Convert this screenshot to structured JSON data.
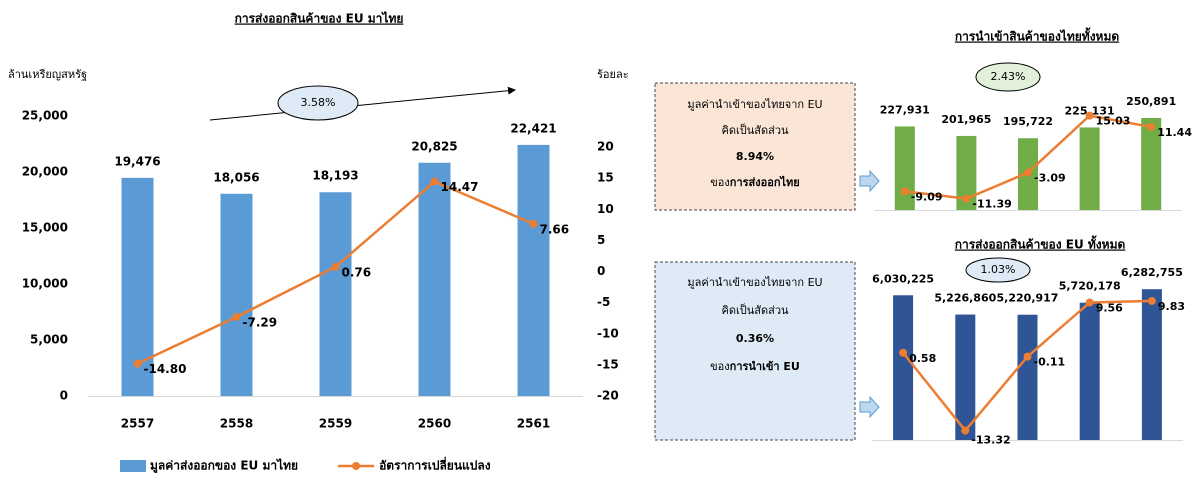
{
  "chart_data": [
    {
      "type": "bar_line",
      "title": "การส่งออกสินค้าของ EU มาไทย",
      "y_label": "ล้านเหรียญสหรัฐ",
      "y2_label": "ร้อยละ",
      "categories": [
        "2557",
        "2558",
        "2559",
        "2560",
        "2561"
      ],
      "series": [
        {
          "name": "มูลค่าส่งออกของ EU มาไทย",
          "kind": "bar",
          "color": "#5b9bd5",
          "values": [
            19476,
            18056,
            18193,
            20825,
            22421
          ],
          "value_labels": [
            "19,476",
            "18,056",
            "18,193",
            "20,825",
            "22,421"
          ]
        },
        {
          "name": "อัตราการเปลี่ยนแปลง",
          "kind": "line",
          "axis": "y2",
          "color": "#ed7d31",
          "values": [
            -14.8,
            -7.29,
            0.76,
            14.47,
            7.66
          ],
          "value_labels": [
            "-14.80",
            "-7.29",
            "0.76",
            "14.47",
            "7.66"
          ]
        }
      ],
      "ylim": [
        0,
        25000
      ],
      "yticks": [
        0,
        {
          "value": 5000,
          "label": "5,000"
        },
        {
          "value": 10000,
          "label": "10,000"
        },
        {
          "value": 15000,
          "label": "15,000"
        },
        {
          "value": 20000,
          "label": "20,000"
        },
        {
          "value": 25000,
          "label": "25,000"
        }
      ],
      "y2lim": [
        -20,
        25
      ],
      "y2ticks": [
        -20,
        -15,
        -10,
        -5,
        0,
        5,
        10,
        15,
        20
      ],
      "annotation": "3.58%",
      "legend": "bottom"
    },
    {
      "type": "bar_line",
      "title": "การนำเข้าสินค้าของไทยทั้งหมด",
      "series": [
        {
          "kind": "bar",
          "color": "#70ad47",
          "values": [
            227931,
            201965,
            195722,
            225131,
            250891
          ],
          "value_labels": [
            "227,931",
            "201,965",
            "195,722",
            "225,131",
            "250,891"
          ]
        },
        {
          "kind": "line",
          "axis": "y2",
          "color": "#ed7d31",
          "values": [
            -9.09,
            -11.39,
            -3.09,
            15.03,
            11.44
          ]
        }
      ],
      "ylim": [
        0,
        300000
      ],
      "y2lim": [
        -15,
        20
      ],
      "annotation": "2.43%",
      "note": {
        "lines": [
          "มูลค่านำเข้าของไทยจาก EU",
          "คิดเป็นสัดส่วน",
          "8.94%"
        ],
        "last_prefix": "ของ",
        "last_bold": "การส่งออกไทย"
      }
    },
    {
      "type": "bar_line",
      "title": "การส่งออกสินค้าของ EU ทั้งหมด",
      "series": [
        {
          "kind": "bar",
          "color": "#2f5597",
          "values": [
            6030225,
            5226860,
            5220917,
            5720178,
            6282755
          ],
          "value_labels": [
            "6,030,225",
            "5,226,860",
            "5,220,917",
            "5,720,178",
            "6,282,755"
          ]
        },
        {
          "kind": "line",
          "axis": "y2",
          "color": "#ed7d31",
          "values": [
            0.58,
            -13.32,
            -0.11,
            9.56,
            9.83
          ]
        }
      ],
      "ylim": [
        0,
        7000000
      ],
      "y2lim": [
        -15,
        15
      ],
      "annotation": "1.03%",
      "note": {
        "lines": [
          "มูลค่านำเข้าของไทยจาก EU",
          "คิดเป็นสัดส่วน",
          "0.36%"
        ],
        "last_prefix": "ของ",
        "last_bold": "การนำเข้า EU"
      }
    }
  ]
}
